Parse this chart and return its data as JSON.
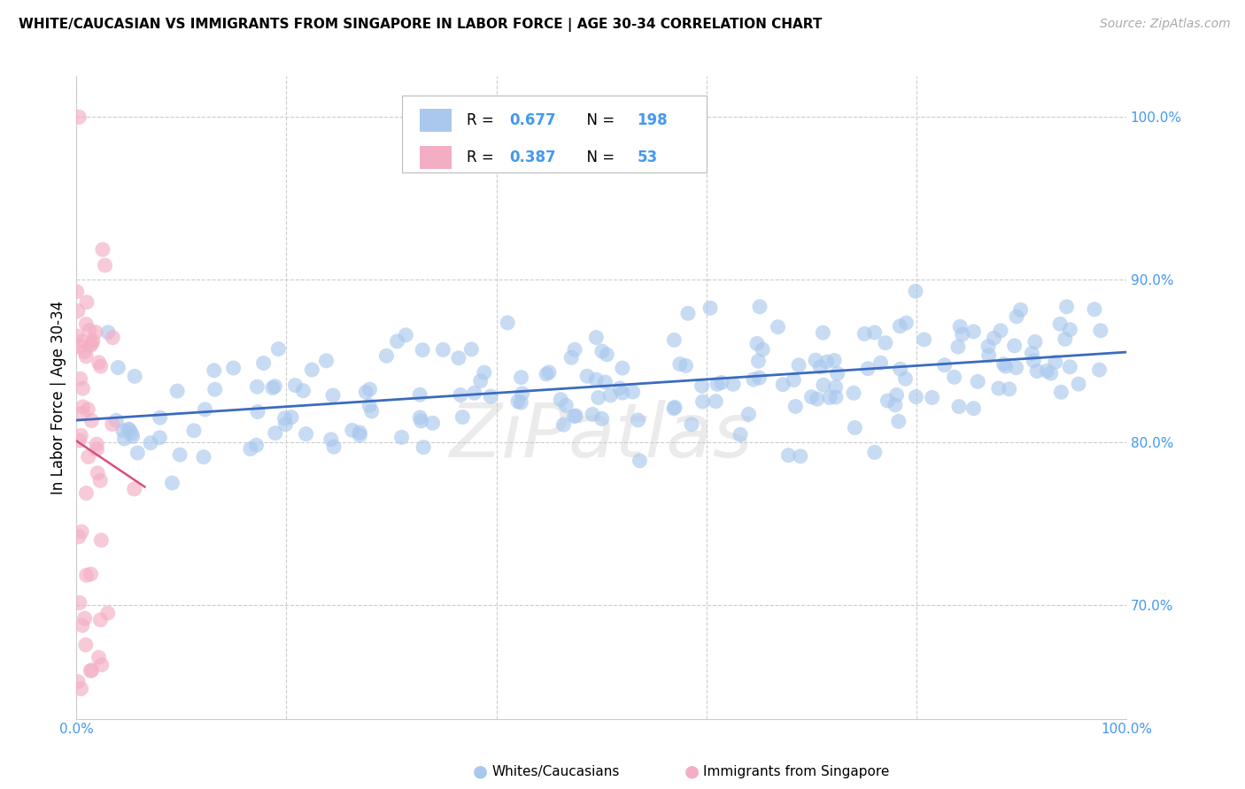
{
  "title": "WHITE/CAUCASIAN VS IMMIGRANTS FROM SINGAPORE IN LABOR FORCE | AGE 30-34 CORRELATION CHART",
  "source": "Source: ZipAtlas.com",
  "ylabel": "In Labor Force | Age 30-34",
  "blue_color": "#aac8ee",
  "pink_color": "#f4aec4",
  "blue_line_color": "#3a6bbf",
  "pink_line_color": "#d94f7a",
  "blue_R": 0.677,
  "blue_N": 198,
  "pink_R": 0.387,
  "pink_N": 53,
  "tick_color": "#4499ee",
  "xlim": [
    0.0,
    1.0
  ],
  "ylim": [
    0.63,
    1.025
  ],
  "yticks": [
    0.7,
    0.8,
    0.9,
    1.0
  ],
  "watermark": "ZiPatlas"
}
